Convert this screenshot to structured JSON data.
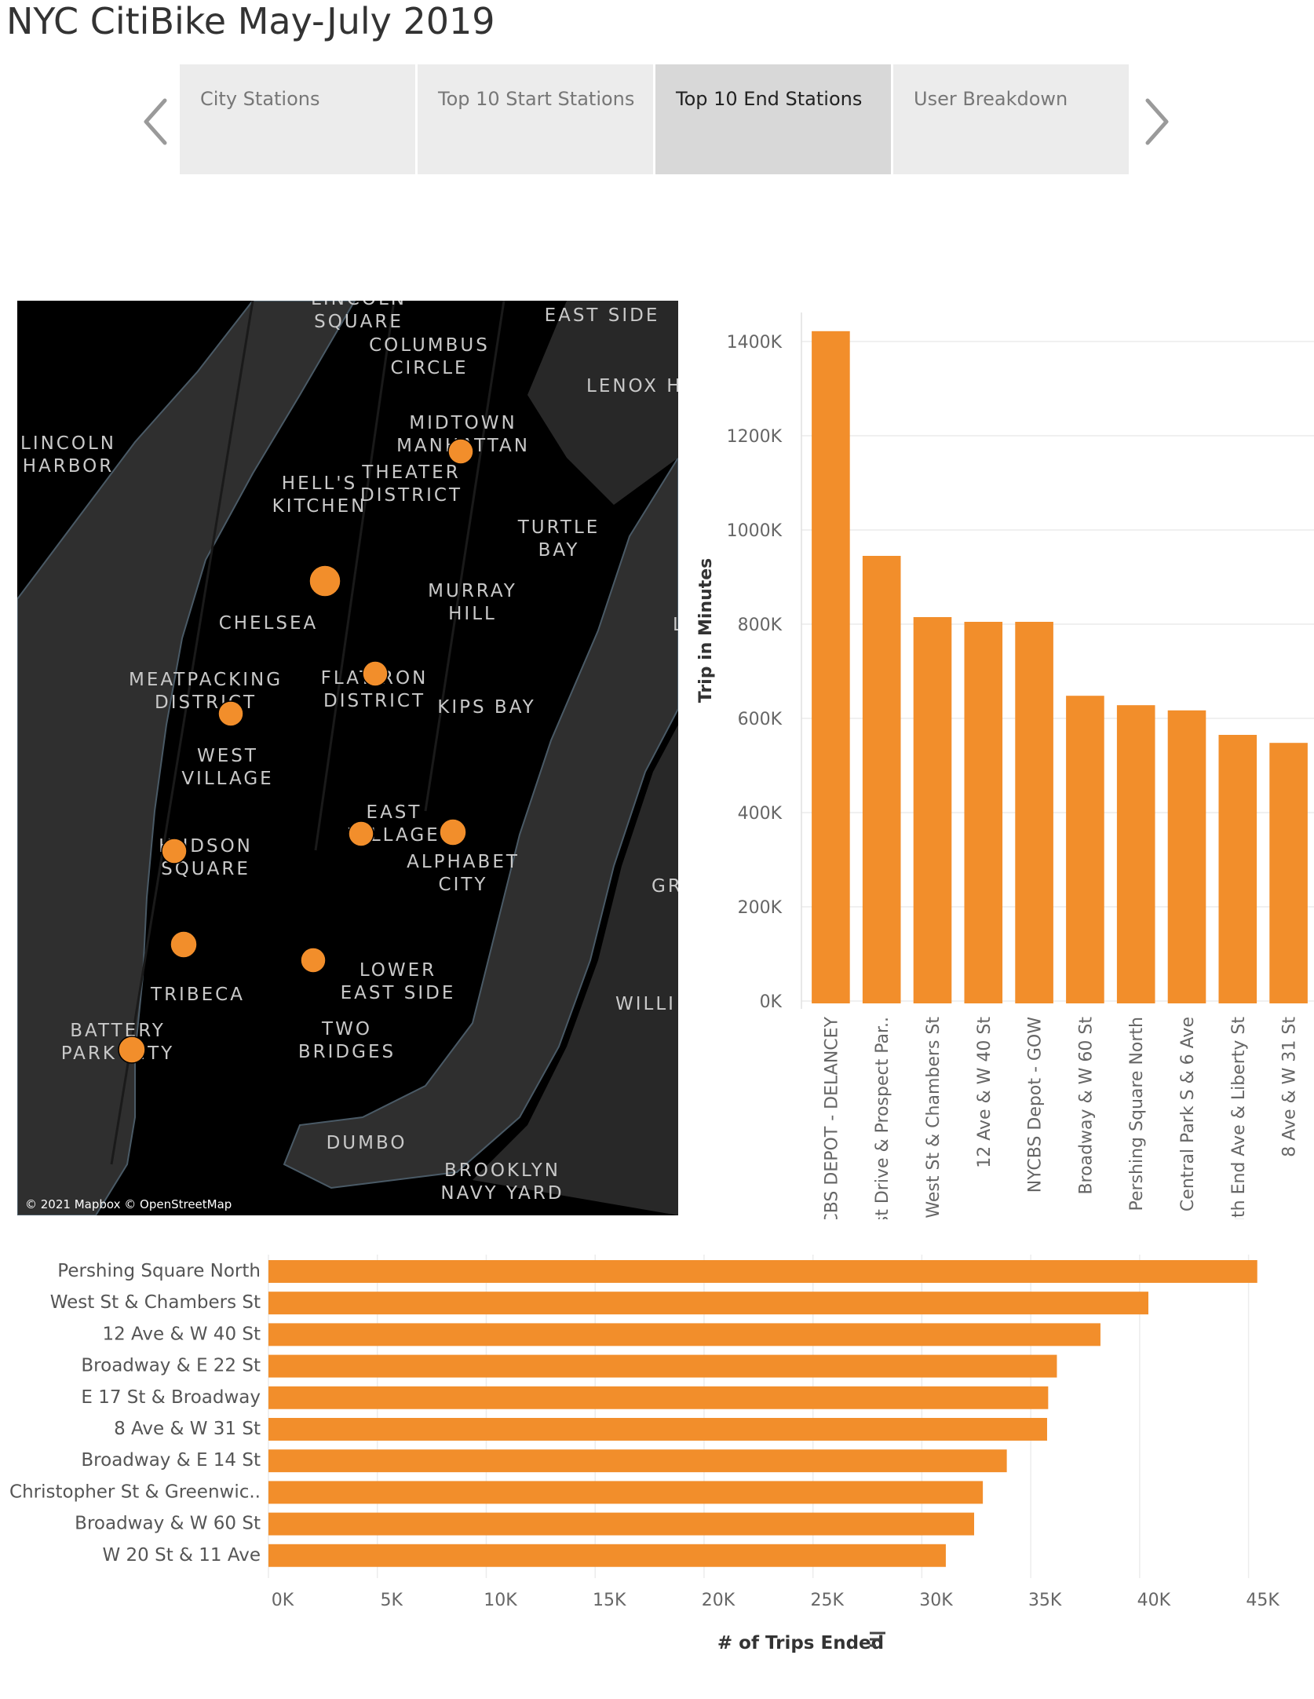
{
  "dashboard": {
    "title": "NYC CitiBike May-July 2019",
    "nav": {
      "prev_icon": "chevron-left-icon",
      "next_icon": "chevron-right-icon",
      "tabs": [
        {
          "label": "City Stations",
          "active": false
        },
        {
          "label": "Top 10 Start Stations",
          "active": false
        },
        {
          "label": "Top 10 End Stations",
          "active": true
        },
        {
          "label": "User Breakdown",
          "active": false
        }
      ]
    }
  },
  "map": {
    "attribution": "© 2021 Mapbox © OpenStreetMap",
    "labels": [
      {
        "lines": [
          "LINCOLN",
          "SQUARE"
        ]
      },
      {
        "lines": [
          "EAST SIDE"
        ]
      },
      {
        "lines": [
          "COLUMBUS",
          "CIRCLE"
        ]
      },
      {
        "lines": [
          "LENOX H"
        ]
      },
      {
        "lines": [
          "MIDTOWN",
          "MANHATTAN"
        ]
      },
      {
        "lines": [
          "LINCOLN",
          "HARBOR"
        ]
      },
      {
        "lines": [
          "HELL'S",
          "KITCHEN"
        ]
      },
      {
        "lines": [
          "THEATER",
          "DISTRICT"
        ]
      },
      {
        "lines": [
          "TURTLE",
          "BAY"
        ]
      },
      {
        "lines": [
          "MURRAY",
          "HILL"
        ]
      },
      {
        "lines": [
          "CHELSEA"
        ]
      },
      {
        "lines": [
          "MEATPACKING",
          "DISTRICT"
        ]
      },
      {
        "lines": [
          "FLATIRON",
          "DISTRICT"
        ]
      },
      {
        "lines": [
          "KIPS BAY"
        ]
      },
      {
        "lines": [
          "WEST",
          "VILLAGE"
        ]
      },
      {
        "lines": [
          "EAST",
          "VILLAGE"
        ]
      },
      {
        "lines": [
          "HUDSON",
          "SQUARE"
        ]
      },
      {
        "lines": [
          "ALPHABET",
          "CITY"
        ]
      },
      {
        "lines": [
          "GR"
        ]
      },
      {
        "lines": [
          "LOWER",
          "EAST SIDE"
        ]
      },
      {
        "lines": [
          "TRIBECA"
        ]
      },
      {
        "lines": [
          "WILLI"
        ]
      },
      {
        "lines": [
          "BATTERY",
          "PARK CITY"
        ]
      },
      {
        "lines": [
          "TWO",
          "BRIDGES"
        ]
      },
      {
        "lines": [
          "DUMBO"
        ]
      },
      {
        "lines": [
          "BROOKLYN",
          "NAVY YARD"
        ]
      },
      {
        "lines": [
          "L"
        ]
      }
    ]
  },
  "chart_data": [
    {
      "type": "bar",
      "orientation": "vertical",
      "categories": [
        "NYCBS DEPOT - DELANCEY",
        "West Drive & Prospect Par..",
        "West St & Chambers St",
        "12 Ave & W 40 St",
        "NYCBS Depot - GOW",
        "Broadway & W 60 St",
        "Pershing Square North",
        "Central Park S & 6 Ave",
        "South End Ave & Liberty St",
        "8 Ave & W 31 St"
      ],
      "values": [
        1422000,
        945000,
        815000,
        805000,
        805000,
        648000,
        628000,
        617000,
        565000,
        548000
      ],
      "ylabel": "Trip in Minutes",
      "xlabel": "",
      "ylim": [
        0,
        1420000
      ],
      "yticks": [
        0,
        200000,
        400000,
        600000,
        800000,
        1000000,
        1200000,
        1400000
      ],
      "ytick_labels": [
        "0K",
        "200K",
        "400K",
        "600K",
        "800K",
        "1000K",
        "1200K",
        "1400K"
      ],
      "color": "#f28e2b",
      "grid": true
    },
    {
      "type": "bar",
      "orientation": "horizontal",
      "categories": [
        "Pershing Square North",
        "West St & Chambers St",
        "12 Ave & W 40 St",
        "Broadway & E 22 St",
        "E 17 St & Broadway",
        "8 Ave & W 31 St",
        "Broadway & E 14 St",
        "Christopher St & Greenwic..",
        "Broadway & W 60 St",
        "W 20 St & 11 Ave"
      ],
      "values": [
        45400,
        40400,
        38200,
        36200,
        35800,
        35750,
        33900,
        32800,
        32400,
        31100
      ],
      "xlabel": "# of Trips Ended",
      "xlabel_icon": "sort-descending-icon",
      "ylabel": "",
      "xlim": [
        0,
        47500
      ],
      "xticks": [
        0,
        5000,
        10000,
        15000,
        20000,
        25000,
        30000,
        35000,
        40000,
        45000
      ],
      "xtick_labels": [
        "0K",
        "5K",
        "10K",
        "15K",
        "20K",
        "25K",
        "30K",
        "35K",
        "40K",
        "45K"
      ],
      "color": "#f28e2b",
      "grid": true
    }
  ]
}
